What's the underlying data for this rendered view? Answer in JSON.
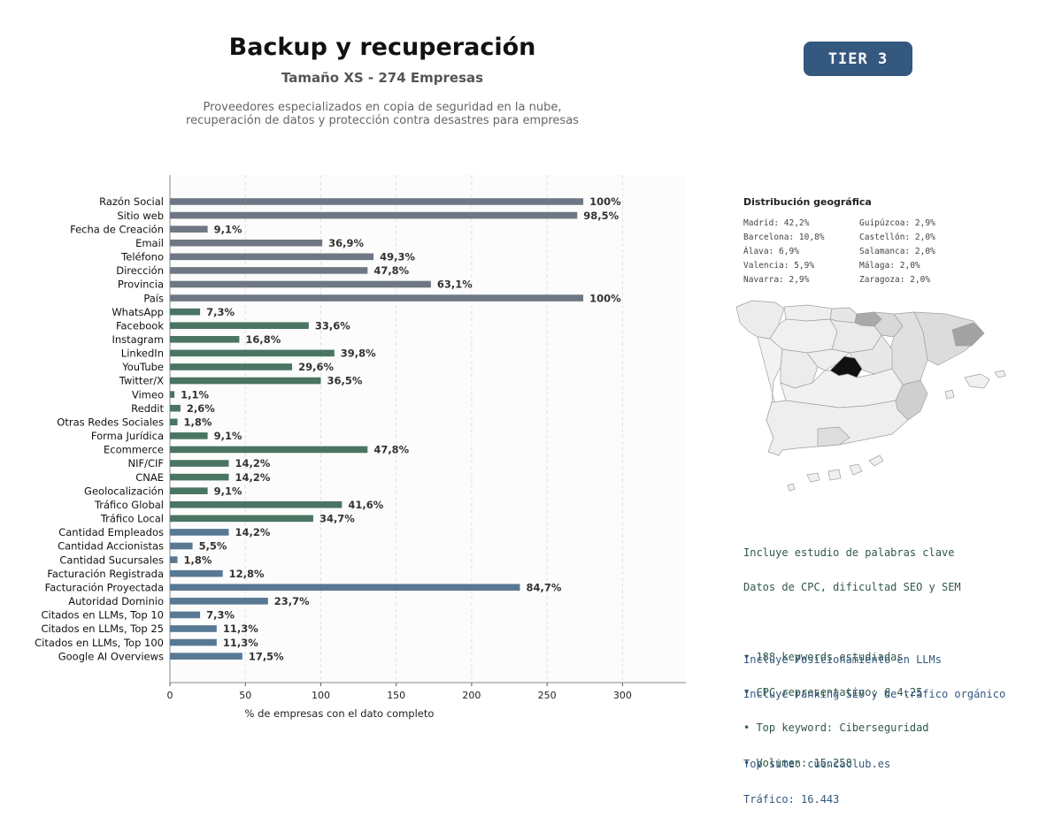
{
  "header": {
    "title": "Backup y recuperación",
    "subtitle": "Tamaño XS - 274 Empresas",
    "description_line1": "Proveedores especializados en copia de seguridad en la nube,",
    "description_line2": "recuperación de datos y protección contra desastres para empresas",
    "tier_badge": "TIER 3"
  },
  "colors": {
    "group1": "#6e7884",
    "group2": "#4a7563",
    "group3": "#587894",
    "tier_badge": "#34587e",
    "keywords_text": "#2f5a45",
    "llm_text": "#34587e",
    "map_highlight": "#111111"
  },
  "chart_data": {
    "type": "bar",
    "orientation": "horizontal",
    "xlabel": "% de empresas con el dato completo",
    "xlim": [
      0,
      342
    ],
    "xticks": [
      0,
      50,
      100,
      150,
      200,
      250,
      300
    ],
    "grid": "vertical dashed",
    "categories": [
      "Razón Social",
      "Sitio web",
      "Fecha de Creación",
      "Email",
      "Teléfono",
      "Dirección",
      "Provincia",
      "País",
      "WhatsApp",
      "Facebook",
      "Instagram",
      "LinkedIn",
      "YouTube",
      "Twitter/X",
      "Vimeo",
      "Reddit",
      "Otras Redes Sociales",
      "Forma Jurídica",
      "Ecommerce",
      "NIF/CIF",
      "CNAE",
      "Geolocalización",
      "Tráfico Global",
      "Tráfico Local",
      "Cantidad Empleados",
      "Cantidad Accionistas",
      "Cantidad Sucursales",
      "Facturación Registrada",
      "Facturación Proyectada",
      "Autoridad Dominio",
      "Citados en LLMs, Top 10",
      "Citados en LLMs, Top 25",
      "Citados en LLMs, Top 100",
      "Google AI Overviews"
    ],
    "values": [
      274,
      270,
      25,
      101,
      135,
      131,
      173,
      274,
      20,
      92,
      46,
      109,
      81,
      100,
      3,
      7,
      5,
      25,
      131,
      39,
      39,
      25,
      114,
      95,
      39,
      15,
      5,
      35,
      232,
      65,
      20,
      31,
      31,
      48
    ],
    "labels": [
      "100%",
      "98,5%",
      "9,1%",
      "36,9%",
      "49,3%",
      "47,8%",
      "63,1%",
      "100%",
      "7,3%",
      "33,6%",
      "16,8%",
      "39,8%",
      "29,6%",
      "36,5%",
      "1,1%",
      "2,6%",
      "1,8%",
      "9,1%",
      "47,8%",
      "14,2%",
      "14,2%",
      "9,1%",
      "41,6%",
      "34,7%",
      "14,2%",
      "5,5%",
      "1,8%",
      "12,8%",
      "84,7%",
      "23,7%",
      "7,3%",
      "11,3%",
      "11,3%",
      "17,5%"
    ],
    "groups": [
      1,
      1,
      1,
      1,
      1,
      1,
      1,
      1,
      2,
      2,
      2,
      2,
      2,
      2,
      2,
      2,
      2,
      2,
      2,
      2,
      2,
      2,
      2,
      2,
      3,
      3,
      3,
      3,
      3,
      3,
      3,
      3,
      3,
      3
    ]
  },
  "geo": {
    "title": "Distribución geográfica",
    "items": [
      "Madrid: 42,2%",
      "Guipúzcoa: 2,9%",
      "Barcelona: 10,8%",
      "Castellón: 2,0%",
      "Álava: 6,9%",
      "Salamanca: 2,0%",
      "Valencia: 5,9%",
      "Málaga: 2,0%",
      "Navarra: 2,9%",
      "Zaragoza: 2,0%"
    ]
  },
  "keywords": {
    "line1": "Incluye estudio de palabras clave",
    "line2": "Datos de CPC, dificultad SEO y SEM",
    "bullet1": "• 188 keywords estudiadas",
    "bullet2": "• CPC representativo: € 4.25",
    "bullet3": "• Top keyword: Ciberseguridad",
    "bullet4": "• Volumen: 15.258"
  },
  "llm": {
    "line1": "Incluye Posicionamiento en LLMs",
    "line2": "Incluye ranking SEO y de tráfico orgánico",
    "top_site": "Top site: cuencaclub.es",
    "traffic": "Tráfico: 16.443"
  }
}
